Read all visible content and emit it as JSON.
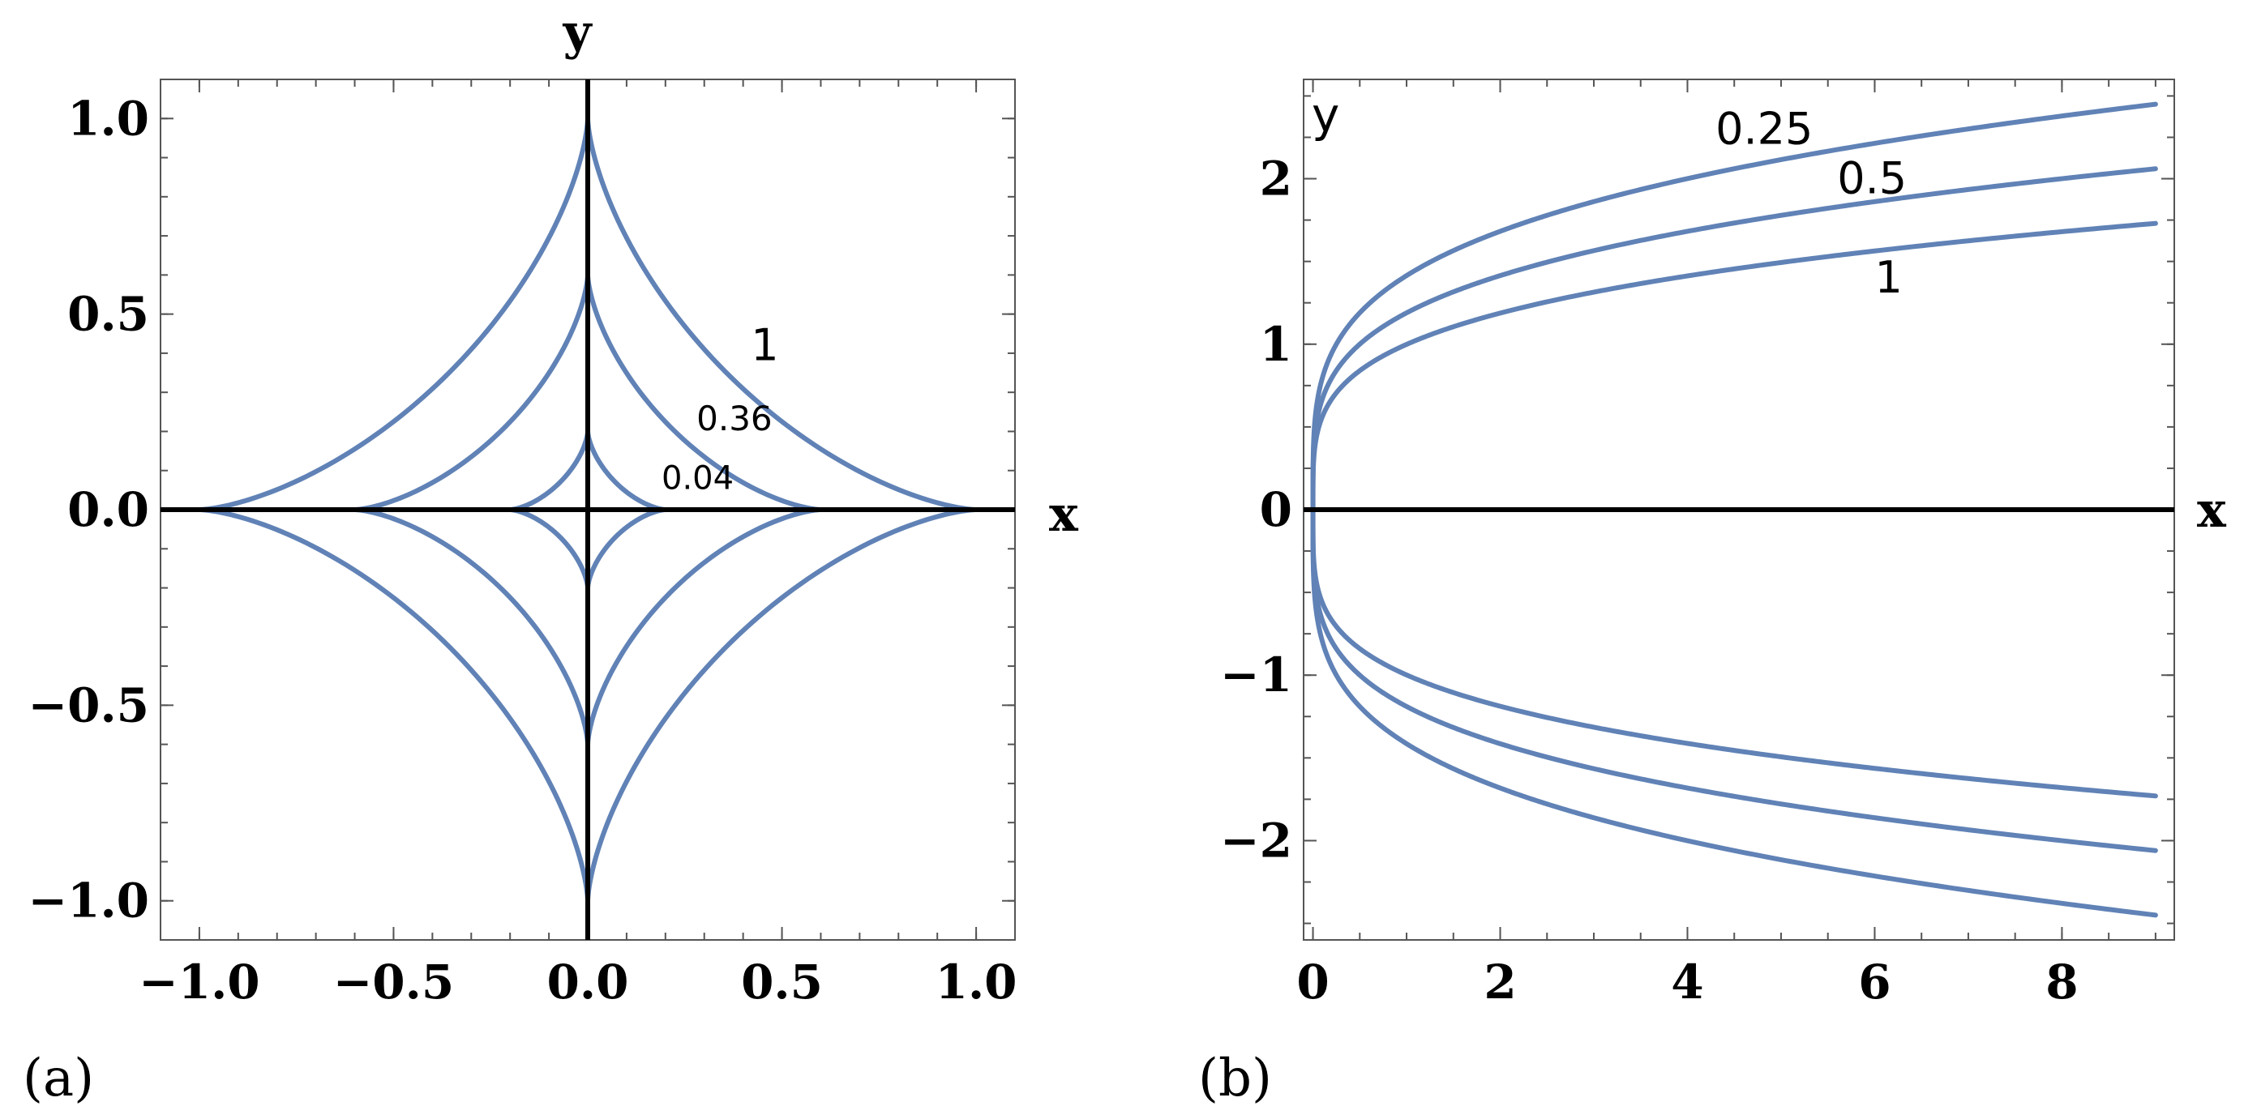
{
  "chart_data": [
    {
      "type": "line",
      "panel_label": "(a)",
      "xlabel": "x",
      "ylabel": "y",
      "xlim": [
        -1.1,
        1.1
      ],
      "ylim": [
        -1.1,
        1.1
      ],
      "x_ticks": [
        -1.0,
        -0.5,
        0.0,
        0.5,
        1.0
      ],
      "x_tick_labels": [
        "−1.0",
        "−0.5",
        "0.0",
        "0.5",
        "1.0"
      ],
      "y_ticks": [
        -1.0,
        -0.5,
        0.0,
        0.5,
        1.0
      ],
      "y_tick_labels": [
        "−1.0",
        "−0.5",
        "0.0",
        "0.5",
        "1.0"
      ],
      "grid": false,
      "series": [
        {
          "label": "1",
          "parameter": 1,
          "half_width": 1.0
        },
        {
          "label": "0.36",
          "parameter": 0.36,
          "half_width": 0.6
        },
        {
          "label": "0.04",
          "parameter": 0.04,
          "half_width": 0.2
        }
      ],
      "annotations": [
        {
          "text": "1",
          "x": 0.42,
          "y": 0.42
        },
        {
          "text": "0.36",
          "x": 0.28,
          "y": 0.24
        },
        {
          "text": "0.04",
          "x": 0.19,
          "y": 0.09
        }
      ]
    },
    {
      "type": "line",
      "panel_label": "(b)",
      "xlabel": "x",
      "ylabel": "y",
      "xlim": [
        -0.1,
        9.2
      ],
      "ylim": [
        -2.6,
        2.6
      ],
      "x_ticks": [
        0,
        2,
        4,
        6,
        8
      ],
      "x_tick_labels": [
        "0",
        "2",
        "4",
        "6",
        "8"
      ],
      "y_ticks": [
        -2,
        -1,
        0,
        1,
        2
      ],
      "y_tick_labels": [
        "−2",
        "−1",
        "0",
        "1",
        "2"
      ],
      "grid": false,
      "series": [
        {
          "label": "0.25",
          "parameter": 0.25,
          "y_at_x_max": 2.45
        },
        {
          "label": "0.5",
          "parameter": 0.5,
          "y_at_x_max": 2.06
        },
        {
          "label": "1",
          "parameter": 1,
          "y_at_x_max": 1.73
        }
      ],
      "annotations": [
        {
          "text": "0.25",
          "x": 4.3,
          "y": 2.3
        },
        {
          "text": "0.5",
          "x": 5.6,
          "y": 2.0
        },
        {
          "text": "1",
          "x": 6.0,
          "y": 1.4
        }
      ]
    }
  ]
}
